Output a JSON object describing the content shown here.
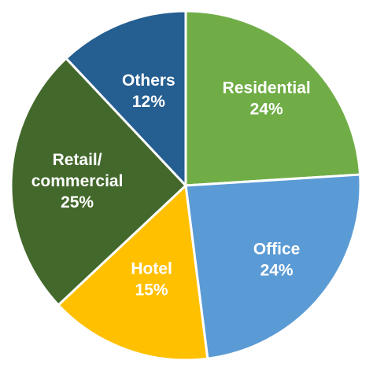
{
  "chart_data": {
    "type": "pie",
    "title": "",
    "slices": [
      {
        "label": "Residential",
        "label_lines": [
          "Residential"
        ],
        "value_text": "24%",
        "value": 24,
        "color": "#70AD47"
      },
      {
        "label": "Office",
        "label_lines": [
          "Office"
        ],
        "value_text": "24%",
        "value": 24,
        "color": "#5B9BD5"
      },
      {
        "label": "Hotel",
        "label_lines": [
          "Hotel"
        ],
        "value_text": "15%",
        "value": 15,
        "color": "#FFC000"
      },
      {
        "label": "Retail/ commercial",
        "label_lines": [
          "Retail/",
          "commercial"
        ],
        "value_text": "25%",
        "value": 25,
        "color": "#43682B"
      },
      {
        "label": "Others",
        "label_lines": [
          "Others"
        ],
        "value_text": "12%",
        "value": 12,
        "color": "#255E91"
      }
    ],
    "start_angle": "12 o'clock",
    "direction": "clockwise",
    "border_color": "#ffffff",
    "label_color": "#ffffff",
    "legend": "none"
  }
}
